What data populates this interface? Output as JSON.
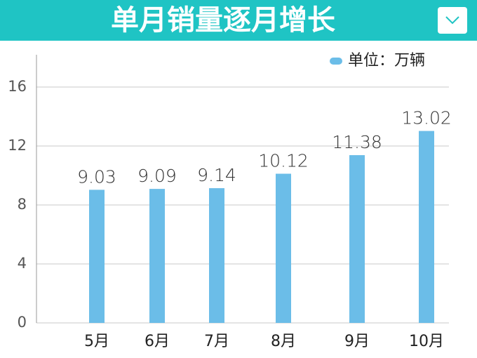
{
  "chart_data": {
    "type": "bar",
    "title": "单月销量逐月增长",
    "categories": [
      "5月",
      "6月",
      "7月",
      "8月",
      "9月",
      "10月"
    ],
    "series": [
      {
        "name": "单位：万辆",
        "color": "#6bbde8",
        "values": [
          9.03,
          9.09,
          9.14,
          10.12,
          11.38,
          13.02
        ]
      }
    ],
    "ylim": [
      0,
      18
    ],
    "yticks": [
      0,
      4,
      8,
      12,
      16
    ],
    "grid": true
  }
}
